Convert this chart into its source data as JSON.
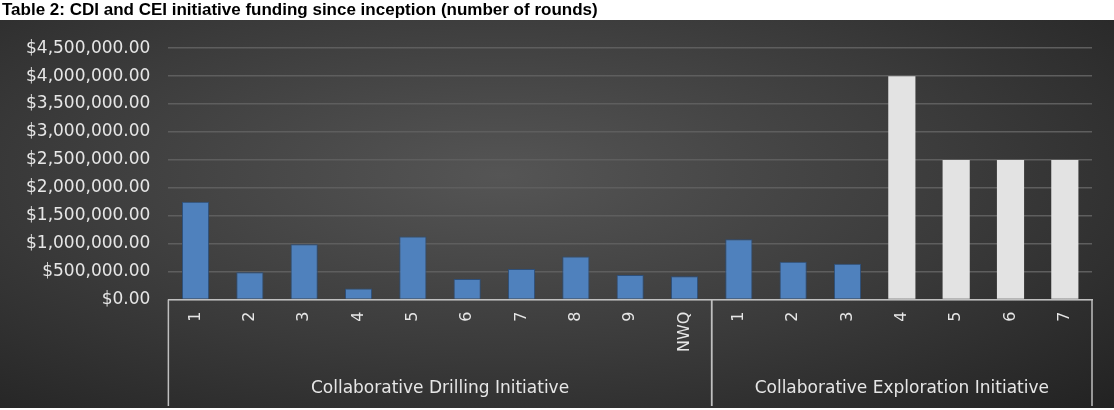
{
  "chart_data": {
    "type": "bar",
    "title": "Table 2: CDI and CEI initiative funding since inception (number of rounds)",
    "categories": [
      "1",
      "2",
      "3",
      "4",
      "5",
      "6",
      "7",
      "8",
      "9",
      "NWQ",
      "1",
      "2",
      "3",
      "4",
      "5",
      "6",
      "7"
    ],
    "series": [
      {
        "color": "#4f81bd",
        "values": [
          1750000,
          490000,
          990000,
          200000,
          1130000,
          370000,
          550000,
          770000,
          440000,
          420000,
          null,
          null,
          null,
          null,
          null,
          null,
          null
        ]
      },
      {
        "colors": [
          "#4f81bd",
          "#4f81bd",
          "#4f81bd",
          "#4f81bd",
          "#4f81bd",
          "#4f81bd",
          "#4f81bd",
          "#4f81bd",
          "#4f81bd",
          "#4f81bd",
          "#4f81bd",
          "#4f81bd",
          "#4f81bd",
          "#e3e3e3",
          "#e3e3e3",
          "#e3e3e3",
          "#e3e3e3"
        ],
        "values": [
          null,
          null,
          null,
          null,
          null,
          null,
          null,
          null,
          null,
          null,
          1080000,
          680000,
          640000,
          4000000,
          2500000,
          2500000,
          2500000
        ]
      }
    ],
    "annotations": [
      "Collaborative Drilling Initiative",
      "Collaborative Exploration Initiative"
    ],
    "ylim": [
      0,
      4500000
    ],
    "yticks": [
      {
        "value": 0,
        "label": "$0.00"
      },
      {
        "value": 500000,
        "label": "$500,000.00"
      },
      {
        "value": 1000000,
        "label": "$1,000,000.00"
      },
      {
        "value": 1500000,
        "label": "$1,500,000.00"
      },
      {
        "value": 2000000,
        "label": "$2,000,000.00"
      },
      {
        "value": 2500000,
        "label": "$2,500,000.00"
      },
      {
        "value": 3000000,
        "label": "$3,000,000.00"
      },
      {
        "value": 3500000,
        "label": "$3,500,000.00"
      },
      {
        "value": 4000000,
        "label": "$4,000,000.00"
      },
      {
        "value": 4500000,
        "label": "$4,500,000.00"
      }
    ],
    "grid": "y",
    "legend": false
  }
}
